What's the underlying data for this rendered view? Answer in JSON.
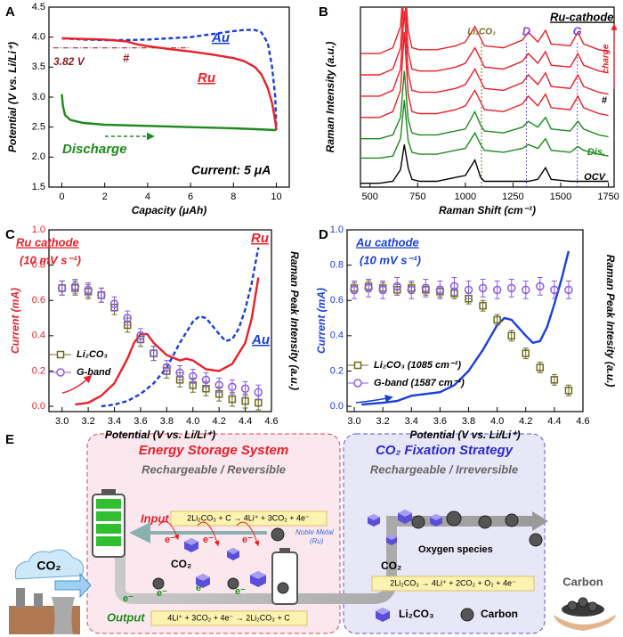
{
  "chart_data": [
    {
      "type": "line",
      "panel": "A",
      "xlabel": "Capacity (μAh)",
      "ylabel": "Potential (V vs. Li/Li⁺)",
      "xlim": [
        -0.6,
        10.6
      ],
      "ylim": [
        1.5,
        4.5
      ],
      "xticks": [
        0,
        2,
        4,
        6,
        8,
        10
      ],
      "yticks": [
        1.5,
        {
          "value": 2,
          "label": "2.0"
        },
        2.5,
        {
          "value": 3,
          "label": "3.0"
        },
        3.5,
        {
          "value": 4,
          "label": "4.0"
        },
        4.5
      ],
      "hline": {
        "value": 3.82,
        "label": "3.82 V",
        "color": "#8b1a1a"
      },
      "annotations": [
        "#",
        "Current: 5 μA"
      ],
      "series": [
        {
          "name": "Au",
          "color": "#1a3fd6",
          "dash": true,
          "x": [
            0,
            1,
            2,
            3,
            4,
            5,
            6,
            7,
            8,
            8.5,
            9,
            9.3,
            9.6,
            9.8,
            9.95,
            10
          ],
          "values": [
            3.98,
            3.96,
            3.95,
            3.95,
            3.96,
            3.98,
            4.0,
            4.05,
            4.1,
            4.12,
            4.12,
            4.08,
            3.9,
            3.5,
            3.0,
            2.45
          ]
        },
        {
          "name": "Ru",
          "color": "#e8202a",
          "x": [
            0,
            1,
            2,
            3,
            3.5,
            4,
            5,
            6,
            7,
            8,
            8.5,
            9,
            9.3,
            9.6,
            9.8,
            9.95,
            10
          ],
          "values": [
            3.98,
            3.97,
            3.96,
            3.93,
            3.88,
            3.85,
            3.8,
            3.76,
            3.71,
            3.65,
            3.6,
            3.5,
            3.38,
            3.15,
            2.9,
            2.6,
            2.45
          ]
        },
        {
          "name": "Discharge",
          "color": "#1e8a1e",
          "x": [
            0,
            0.05,
            0.15,
            0.4,
            1,
            2,
            4,
            6,
            8,
            10
          ],
          "values": [
            3.05,
            2.85,
            2.7,
            2.62,
            2.57,
            2.54,
            2.52,
            2.5,
            2.48,
            2.45
          ]
        }
      ]
    },
    {
      "type": "line",
      "panel": "B",
      "title": "Ru-cathode",
      "xlabel": "Raman Shift (cm⁻¹)",
      "ylabel": "Raman Intensity (a.u.)",
      "xlim": [
        450,
        1780
      ],
      "ylim": [
        0,
        9.3
      ],
      "xticks": [
        500,
        750,
        1000,
        1250,
        1500,
        1750
      ],
      "annotations": [
        "charge",
        "#"
      ],
      "peak_markers": [
        {
          "x": 1085,
          "label": "Li₂CO₃",
          "color": "#6b6b1e"
        },
        {
          "x": 1320,
          "label": "D",
          "color": "#7b4de0"
        },
        {
          "x": 1587,
          "label": "G",
          "color": "#7b4de0"
        }
      ],
      "x": [
        450,
        550,
        620,
        660,
        680,
        700,
        720,
        760,
        850,
        950,
        1000,
        1050,
        1080,
        1100,
        1200,
        1300,
        1330,
        1380,
        1420,
        1450,
        1550,
        1590,
        1620,
        1700,
        1750
      ],
      "series": [
        {
          "name": "OCV",
          "color": "#000000",
          "values": [
            0.2,
            0.2,
            0.3,
            0.9,
            2.2,
            1.0,
            0.4,
            0.3,
            0.3,
            0.5,
            0.6,
            1.4,
            0.5,
            0.3,
            0.3,
            0.3,
            0.3,
            0.4,
            1.0,
            0.4,
            0.3,
            0.3,
            0.3,
            0.3,
            0.3
          ]
        },
        {
          "name": "Dis.",
          "color": "#1e8a1e",
          "values": [
            1.5,
            1.5,
            1.6,
            2.5,
            4.5,
            2.4,
            1.8,
            1.7,
            1.7,
            1.9,
            2.0,
            2.8,
            2.2,
            1.9,
            1.8,
            2.0,
            2.2,
            2.0,
            2.5,
            1.9,
            1.8,
            2.1,
            1.9,
            1.7,
            1.6
          ]
        },
        {
          "color": "#1e8a1e",
          "values": [
            2.5,
            2.5,
            2.7,
            3.6,
            6.0,
            3.5,
            2.8,
            2.7,
            2.7,
            2.9,
            3.0,
            3.9,
            3.2,
            2.9,
            2.8,
            3.1,
            3.4,
            3.1,
            3.6,
            3.0,
            2.9,
            3.4,
            3.0,
            2.7,
            2.6
          ]
        },
        {
          "color": "#e8202a",
          "values": [
            3.6,
            3.6,
            3.9,
            5.0,
            8.0,
            4.8,
            3.9,
            3.8,
            3.8,
            4.0,
            4.2,
            5.0,
            4.4,
            4.0,
            3.9,
            4.3,
            4.7,
            4.2,
            4.8,
            4.1,
            4.0,
            4.7,
            4.1,
            3.8,
            3.7
          ]
        },
        {
          "color": "#e8202a",
          "values": [
            4.7,
            4.7,
            5.0,
            6.1,
            9.1,
            5.9,
            5.0,
            4.9,
            4.9,
            5.1,
            5.3,
            6.1,
            5.5,
            5.1,
            5.0,
            5.4,
            5.8,
            5.3,
            5.9,
            5.2,
            5.1,
            5.8,
            5.2,
            4.9,
            4.8
          ]
        },
        {
          "color": "#e8202a",
          "values": [
            5.8,
            5.8,
            6.1,
            7.2,
            10.2,
            7.0,
            6.1,
            6.0,
            6.0,
            6.2,
            6.4,
            7.2,
            6.6,
            6.2,
            6.1,
            6.5,
            6.9,
            6.4,
            7.0,
            6.3,
            6.2,
            6.9,
            6.3,
            6.0,
            5.9
          ]
        },
        {
          "color": "#e8202a",
          "values": [
            6.9,
            6.9,
            7.2,
            8.3,
            11,
            8.1,
            7.2,
            7.1,
            7.1,
            7.3,
            7.5,
            8.3,
            7.7,
            7.3,
            7.2,
            7.6,
            8.0,
            7.5,
            8.1,
            7.4,
            7.3,
            8.0,
            7.4,
            7.1,
            7.0
          ]
        }
      ]
    },
    {
      "type": "line",
      "panel": "C",
      "title": "Ru cathode",
      "subtitle": "(10 mV s⁻¹)",
      "xlabel": "Potential (V vs. Li/Li⁺)",
      "ylabel": "Current (mA)",
      "y2label": "Raman Peak Intensity (a.u.)",
      "y_color": "#e8202a",
      "xlim": [
        2.9,
        4.6
      ],
      "ylim": [
        -0.03,
        1.0
      ],
      "y2lim": [
        -0.03,
        1.0
      ],
      "xticks": [
        {
          "value": 3,
          "label": "3.0"
        },
        3.2,
        3.4,
        3.6,
        3.8,
        {
          "value": 4,
          "label": "4.0"
        },
        4.2,
        4.4,
        4.6
      ],
      "yticks": [
        {
          "value": 0,
          "label": "0.0"
        },
        0.2,
        0.4,
        0.6,
        0.8,
        {
          "value": 1,
          "label": "1.0"
        }
      ],
      "series": [
        {
          "name": "Ru",
          "color": "#e8202a",
          "x": [
            3.1,
            3.2,
            3.3,
            3.4,
            3.5,
            3.55,
            3.6,
            3.65,
            3.7,
            3.8,
            3.9,
            3.95,
            4.0,
            4.1,
            4.2,
            4.3,
            4.4,
            4.45,
            4.5
          ],
          "values": [
            0.01,
            0.02,
            0.06,
            0.13,
            0.27,
            0.36,
            0.41,
            0.41,
            0.36,
            0.29,
            0.26,
            0.27,
            0.26,
            0.21,
            0.2,
            0.24,
            0.36,
            0.5,
            0.73
          ]
        },
        {
          "name": "Au",
          "color": "#1a3fd6",
          "dash": true,
          "x": [
            3.3,
            3.4,
            3.5,
            3.6,
            3.7,
            3.8,
            3.9,
            4.0,
            4.05,
            4.1,
            4.2,
            4.25,
            4.3,
            4.35,
            4.4,
            4.45,
            4.5
          ],
          "values": [
            0,
            0.01,
            0.03,
            0.07,
            0.13,
            0.22,
            0.36,
            0.48,
            0.51,
            0.5,
            0.41,
            0.37,
            0.38,
            0.44,
            0.55,
            0.7,
            0.9
          ]
        },
        {
          "name": "Li₂CO₃",
          "color": "#6b6b1e",
          "marker": "square",
          "axis": "y2",
          "x": [
            3.0,
            3.1,
            3.2,
            3.3,
            3.4,
            3.5,
            3.6,
            3.7,
            3.8,
            3.9,
            4.0,
            4.1,
            4.2,
            4.3,
            4.4,
            4.5
          ],
          "values": [
            0.67,
            0.67,
            0.65,
            0.63,
            0.56,
            0.46,
            0.38,
            0.3,
            0.2,
            0.15,
            0.12,
            0.1,
            0.07,
            0.04,
            0.03,
            0.02
          ],
          "errors": [
            0.04,
            0.04,
            0.04,
            0.04,
            0.04,
            0.04,
            0.04,
            0.04,
            0.04,
            0.04,
            0.04,
            0.04,
            0.04,
            0.04,
            0.04,
            0.04
          ]
        },
        {
          "name": "G-band",
          "color": "#8a5ce6",
          "marker": "circle",
          "axis": "y2",
          "x": [
            3.0,
            3.1,
            3.2,
            3.3,
            3.4,
            3.5,
            3.6,
            3.7,
            3.8,
            3.9,
            4.0,
            4.1,
            4.2,
            4.3,
            4.4,
            4.5
          ],
          "values": [
            0.67,
            0.68,
            0.66,
            0.63,
            0.58,
            0.5,
            0.4,
            0.3,
            0.22,
            0.19,
            0.17,
            0.15,
            0.12,
            0.11,
            0.1,
            0.08
          ],
          "errors": [
            0.04,
            0.04,
            0.04,
            0.04,
            0.04,
            0.04,
            0.04,
            0.04,
            0.04,
            0.04,
            0.04,
            0.04,
            0.04,
            0.04,
            0.04,
            0.04
          ]
        }
      ]
    },
    {
      "type": "line",
      "panel": "D",
      "title": "Au cathode",
      "subtitle": "(10 mV s⁻¹)",
      "xlabel": "Potential (V vs. Li/Li⁺)",
      "ylabel": "Current (mA)",
      "y2label": "Raman Peak Intesity (a.u.)",
      "y_color": "#1a3fd6",
      "xlim": [
        2.95,
        4.6
      ],
      "ylim": [
        -0.03,
        1.0
      ],
      "y2lim": [
        -0.03,
        1.0
      ],
      "xticks": [
        {
          "value": 3,
          "label": "3.0"
        },
        3.2,
        3.4,
        3.6,
        3.8,
        {
          "value": 4,
          "label": "4.0"
        },
        4.2,
        4.4,
        4.6
      ],
      "yticks": [
        {
          "value": 0,
          "label": "0.0"
        },
        0.2,
        0.4,
        0.6,
        0.8,
        {
          "value": 1,
          "label": "1.0"
        }
      ],
      "series": [
        {
          "color": "#1a3fd6",
          "x": [
            3.05,
            3.2,
            3.3,
            3.4,
            3.5,
            3.6,
            3.7,
            3.8,
            3.9,
            4.0,
            4.05,
            4.1,
            4.2,
            4.25,
            4.3,
            4.35,
            4.4,
            4.45,
            4.5
          ],
          "values": [
            0.01,
            0.02,
            0.03,
            0.06,
            0.07,
            0.08,
            0.12,
            0.2,
            0.32,
            0.46,
            0.5,
            0.49,
            0.4,
            0.36,
            0.37,
            0.45,
            0.58,
            0.72,
            0.88
          ]
        },
        {
          "name": "Li₂CO₃ (1085 cm⁻¹)",
          "color": "#6b6b1e",
          "marker": "square",
          "axis": "y2",
          "x": [
            3.0,
            3.1,
            3.2,
            3.3,
            3.4,
            3.5,
            3.6,
            3.7,
            3.8,
            3.9,
            4.0,
            4.1,
            4.2,
            4.3,
            4.4,
            4.5
          ],
          "values": [
            0.67,
            0.68,
            0.67,
            0.66,
            0.67,
            0.66,
            0.65,
            0.64,
            0.61,
            0.57,
            0.49,
            0.4,
            0.3,
            0.22,
            0.15,
            0.09
          ],
          "errors": [
            0.03,
            0.03,
            0.03,
            0.03,
            0.03,
            0.03,
            0.03,
            0.03,
            0.03,
            0.03,
            0.03,
            0.03,
            0.03,
            0.03,
            0.03,
            0.03
          ]
        },
        {
          "name": "G-band (1587 cm⁻¹)",
          "color": "#8a5ce6",
          "marker": "circle",
          "axis": "y2",
          "x": [
            3.0,
            3.1,
            3.2,
            3.3,
            3.4,
            3.5,
            3.6,
            3.7,
            3.8,
            3.9,
            4.0,
            4.1,
            4.2,
            4.3,
            4.4,
            4.5
          ],
          "values": [
            0.66,
            0.67,
            0.66,
            0.68,
            0.66,
            0.67,
            0.66,
            0.68,
            0.66,
            0.67,
            0.66,
            0.67,
            0.66,
            0.68,
            0.66,
            0.66
          ],
          "errors": [
            0.05,
            0.05,
            0.05,
            0.05,
            0.05,
            0.05,
            0.05,
            0.05,
            0.05,
            0.05,
            0.05,
            0.05,
            0.05,
            0.05,
            0.05,
            0.05
          ]
        }
      ]
    }
  ],
  "diagram": {
    "panel": "E",
    "left": {
      "title": "Energy Storage System",
      "subtitle": "Rechargeable / Reversible",
      "input": "Input",
      "output": "Output",
      "charge_eq": "2Li₂CO₃ + C → 4Li⁺ + 3CO₂ + 4e⁻",
      "discharge_eq": "4Li⁺ + 3CO₂ + 4e⁻ → 2Li₂CO₃ + C",
      "catalyst": [
        "Noble Metal",
        "(Ru)"
      ],
      "co2": "CO₂",
      "electron": "e⁻"
    },
    "right": {
      "title": "CO₂ Fixation Strategy",
      "subtitle": "Rechargeable / Irreversible",
      "oxygen": "Oxygen species",
      "co2": "CO₂",
      "eq": "2Li₂CO₃ → 4Li⁺ + 2CO₂ + O₂ + 4e⁻",
      "legend": [
        "Li₂CO₃",
        "Carbon"
      ]
    },
    "source": "CO₂",
    "product": "Carbon"
  }
}
